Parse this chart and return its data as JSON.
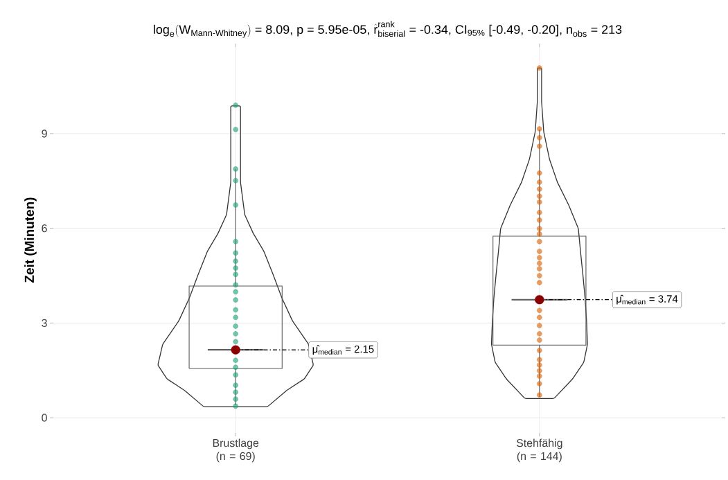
{
  "chart_data": {
    "type": "box",
    "title": "\\text{log}_{\\text{e}}(\\text{W}_{\\text{Mann-Whitney}})\\text{ = 8.09, p = 5.95e-05, }\\hat{\\text{r}}^{\\text{rank}}_{\\text{biserial}}\\text{ = -0.34, CI}_{\\text{95\\%}}\\text{ [-0.49, -0.20], n}_{\\text{obs}}\\text{ = 213}",
    "ylabel": "Zeit (Minuten)",
    "categories": [
      "Brustlage (n = 69)",
      "Stehfähig (n = 144)"
    ],
    "ylim": [
      -0.48,
      11.74
    ],
    "yticks": [
      0,
      3,
      6,
      9
    ],
    "grid": true,
    "series": [
      {
        "color": "#595959",
        "boxes": [
          {
            "low": 0.4,
            "q1": 1.56,
            "median": 2.15,
            "q3": 4.17,
            "high": 7.88
          },
          {
            "low": 0.66,
            "q1": 2.3,
            "median": 3.74,
            "q3": 5.75,
            "high": 9.13
          }
        ]
      },
      {
        "type": "scatter",
        "color": "#1b9e77",
        "x": [
          "Brustlage (n = 69)",
          "Brustlage (n = 69)",
          "Brustlage (n = 69)",
          "Brustlage (n = 69)",
          "Brustlage (n = 69)",
          "Brustlage (n = 69)",
          "Brustlage (n = 69)",
          "Brustlage (n = 69)",
          "Brustlage (n = 69)",
          "Brustlage (n = 69)",
          "Brustlage (n = 69)",
          "Brustlage (n = 69)",
          "Brustlage (n = 69)",
          "Brustlage (n = 69)",
          "Brustlage (n = 69)",
          "Brustlage (n = 69)",
          "Brustlage (n = 69)",
          "Brustlage (n = 69)",
          "Brustlage (n = 69)",
          "Brustlage (n = 69)",
          "Brustlage (n = 69)",
          "Brustlage (n = 69)",
          "Brustlage (n = 69)",
          "Brustlage (n = 69)",
          "Brustlage (n = 69)"
        ],
        "values": [
          0.37,
          0.59,
          0.81,
          1.03,
          1.36,
          1.6,
          1.82,
          2.41,
          2.66,
          2.9,
          3.18,
          3.42,
          3.73,
          3.99,
          4.21,
          4.54,
          4.74,
          4.96,
          5.22,
          5.58,
          6.74,
          7.51,
          7.88,
          9.13,
          9.9
        ]
      },
      {
        "type": "scatter",
        "color": "#d95f02",
        "x": [
          "Stehfähig (n = 144)",
          "Stehfähig (n = 144)",
          "Stehfähig (n = 144)",
          "Stehfähig (n = 144)",
          "Stehfähig (n = 144)",
          "Stehfähig (n = 144)",
          "Stehfähig (n = 144)",
          "Stehfähig (n = 144)",
          "Stehfähig (n = 144)",
          "Stehfähig (n = 144)",
          "Stehfähig (n = 144)",
          "Stehfähig (n = 144)",
          "Stehfähig (n = 144)",
          "Stehfähig (n = 144)",
          "Stehfähig (n = 144)",
          "Stehfähig (n = 144)",
          "Stehfähig (n = 144)",
          "Stehfähig (n = 144)",
          "Stehfähig (n = 144)",
          "Stehfähig (n = 144)",
          "Stehfähig (n = 144)",
          "Stehfähig (n = 144)",
          "Stehfähig (n = 144)",
          "Stehfähig (n = 144)",
          "Stehfähig (n = 144)",
          "Stehfähig (n = 144)",
          "Stehfähig (n = 144)",
          "Stehfähig (n = 144)",
          "Stehfähig (n = 144)",
          "Stehfähig (n = 144)",
          "Stehfähig (n = 144)",
          "Stehfähig (n = 144)"
        ],
        "values": [
          11.08,
          9.15,
          8.87,
          8.6,
          7.75,
          7.46,
          7.24,
          7.02,
          6.83,
          6.5,
          6.26,
          5.99,
          5.82,
          5.58,
          5.27,
          5.07,
          4.89,
          4.72,
          4.5,
          4.28,
          3.4,
          3.18,
          2.92,
          2.66,
          2.46,
          2.13,
          1.84,
          1.67,
          1.49,
          1.32,
          1.08,
          0.72
        ]
      },
      {
        "type": "scatter",
        "color": "#8b0000",
        "x": [
          "Brustlage (n = 69)",
          "Stehfähig (n = 144)"
        ],
        "values": [
          2.15,
          3.74
        ]
      }
    ],
    "annotations": [
      {
        "text": "μ̂$_{median}$ = 2.15",
        "x": "Brustlage (n = 69)",
        "y": 2.15
      },
      {
        "text": "μ̂$_{median}$ = 3.74",
        "x": "Stehfähig (n = 144)",
        "y": 3.74
      }
    ]
  }
}
